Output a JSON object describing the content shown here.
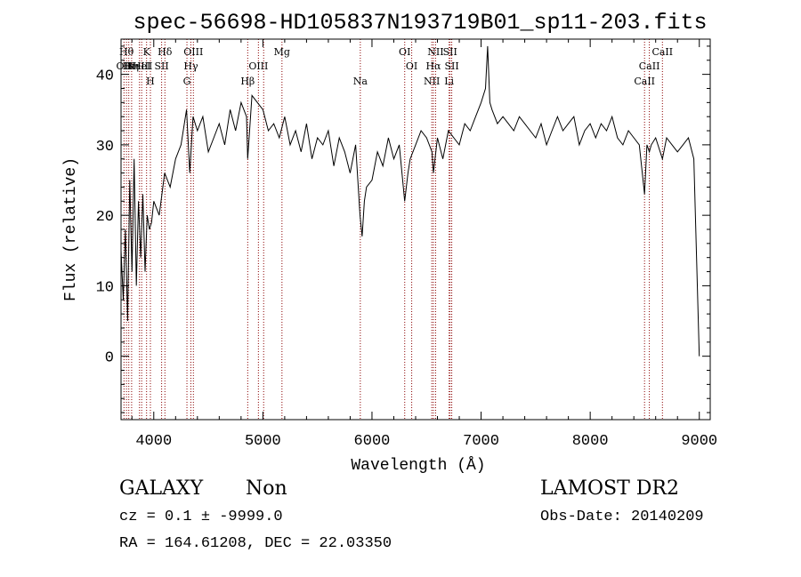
{
  "chart_data": {
    "type": "line",
    "title": "spec-56698-HD105837N193719B01_sp11-203.fits",
    "xlabel": "Wavelength (Å)",
    "ylabel": "Flux (relative)",
    "xlim": [
      3700,
      9100
    ],
    "ylim": [
      -9,
      45
    ],
    "xticks": [
      4000,
      5000,
      6000,
      7000,
      8000,
      9000
    ],
    "yticks": [
      0,
      10,
      20,
      30,
      40
    ],
    "line_color": "#000000",
    "marker_color": "#8b0000",
    "series": [
      {
        "x": [
          3700,
          3720,
          3740,
          3760,
          3780,
          3800,
          3820,
          3840,
          3860,
          3880,
          3900,
          3920,
          3940,
          3960,
          3980,
          4000,
          4050,
          4100,
          4150,
          4200,
          4250,
          4300,
          4330,
          4360,
          4400,
          4450,
          4500,
          4550,
          4600,
          4650,
          4700,
          4750,
          4800,
          4850,
          4861,
          4900,
          4950,
          5000,
          5050,
          5100,
          5150,
          5200,
          5250,
          5300,
          5350,
          5400,
          5450,
          5500,
          5550,
          5600,
          5650,
          5700,
          5750,
          5800,
          5850,
          5890,
          5910,
          5930,
          5950,
          6000,
          6050,
          6100,
          6150,
          6200,
          6250,
          6300,
          6330,
          6350,
          6400,
          6450,
          6500,
          6550,
          6563,
          6600,
          6650,
          6700,
          6750,
          6800,
          6850,
          6900,
          6950,
          7000,
          7040,
          7060,
          7080,
          7100,
          7150,
          7200,
          7250,
          7300,
          7350,
          7400,
          7450,
          7500,
          7550,
          7600,
          7650,
          7700,
          7750,
          7800,
          7850,
          7900,
          7950,
          8000,
          8050,
          8100,
          8150,
          8200,
          8250,
          8300,
          8350,
          8400,
          8450,
          8498,
          8520,
          8542,
          8560,
          8600,
          8662,
          8700,
          8750,
          8800,
          8850,
          8900,
          8950,
          9000
        ],
        "y": [
          15,
          8,
          18,
          5,
          25,
          12,
          28,
          10,
          22,
          14,
          23,
          12,
          20,
          18,
          19,
          22,
          20,
          26,
          24,
          28,
          30,
          35,
          26,
          34,
          32,
          34,
          29,
          31,
          33,
          30,
          35,
          32,
          36,
          34,
          28,
          37,
          36,
          35,
          32,
          33,
          31,
          34,
          30,
          32,
          29,
          33,
          28,
          31,
          30,
          32,
          27,
          31,
          29,
          26,
          30,
          20,
          17,
          22,
          24,
          25,
          29,
          27,
          31,
          28,
          30,
          22,
          26,
          28,
          30,
          32,
          31,
          29,
          26,
          31,
          28,
          32,
          31,
          30,
          33,
          32,
          34,
          36,
          38,
          44,
          36,
          35,
          33,
          34,
          33,
          32,
          34,
          33,
          32,
          31,
          33,
          30,
          32,
          34,
          32,
          33,
          34,
          30,
          32,
          33,
          31,
          33,
          32,
          34,
          31,
          30,
          32,
          31,
          30,
          23,
          30,
          29,
          30,
          31,
          28,
          31,
          30,
          29,
          30,
          31,
          28,
          0
        ]
      }
    ],
    "lines": [
      {
        "wl": 3727,
        "row": 1,
        "label": "OII"
      },
      {
        "wl": 3750,
        "row": 0,
        "label": "Hθ"
      },
      {
        "wl": 3771,
        "row": 1,
        "label": "Hι"
      },
      {
        "wl": 3797,
        "row": 1,
        "label": "Hη"
      },
      {
        "wl": 3869,
        "row": 1,
        "label": "NeIII"
      },
      {
        "wl": 3889,
        "row": 1,
        "label": "HeI"
      },
      {
        "wl": 3934,
        "row": 0,
        "label": "K"
      },
      {
        "wl": 3969,
        "row": 2,
        "label": "H"
      },
      {
        "wl": 4072,
        "row": 1,
        "label": "SII"
      },
      {
        "wl": 4102,
        "row": 0,
        "label": "Hδ"
      },
      {
        "wl": 4304,
        "row": 2,
        "label": "G"
      },
      {
        "wl": 4340,
        "row": 1,
        "label": "Hγ"
      },
      {
        "wl": 4363,
        "row": 0,
        "label": "OIII"
      },
      {
        "wl": 4861,
        "row": 2,
        "label": "Hβ"
      },
      {
        "wl": 4959,
        "row": 1,
        "label": "OIII"
      },
      {
        "wl": 5007,
        "row": 1,
        "label": ""
      },
      {
        "wl": 5175,
        "row": 0,
        "label": "Mg"
      },
      {
        "wl": 5893,
        "row": 2,
        "label": "Na"
      },
      {
        "wl": 6300,
        "row": 0,
        "label": "OI"
      },
      {
        "wl": 6364,
        "row": 1,
        "label": "OI"
      },
      {
        "wl": 6548,
        "row": 2,
        "label": "NII"
      },
      {
        "wl": 6563,
        "row": 1,
        "label": "Hα"
      },
      {
        "wl": 6583,
        "row": 0,
        "label": "NII"
      },
      {
        "wl": 6707,
        "row": 2,
        "label": "Li"
      },
      {
        "wl": 6716,
        "row": 0,
        "label": "SII"
      },
      {
        "wl": 6731,
        "row": 1,
        "label": "SII"
      },
      {
        "wl": 8498,
        "row": 2,
        "label": "CaII"
      },
      {
        "wl": 8542,
        "row": 1,
        "label": "CaII"
      },
      {
        "wl": 8662,
        "row": 0,
        "label": "CaII"
      }
    ]
  },
  "info": {
    "class": "GALAXY",
    "subclass": "Non",
    "survey": "LAMOST DR2",
    "cz": "cz = 0.1 ± -9999.0",
    "obs_date": "Obs-Date: 20140209",
    "radec": "RA = 164.61208, DEC =  22.03350"
  }
}
